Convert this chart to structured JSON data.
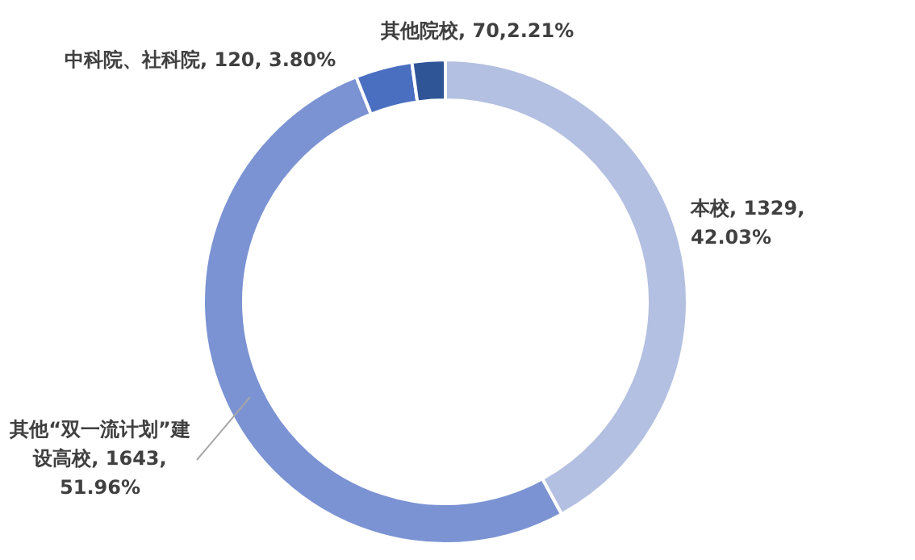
{
  "chart_data": {
    "type": "donut",
    "categories": [
      "本校",
      "其他“双一流计划”建设高校",
      "中科院、社科院",
      "其他院校"
    ],
    "values": [
      1329,
      1643,
      120,
      70
    ],
    "colors": [
      "#b4c0e1",
      "#7b93d3",
      "#4a6fc1",
      "#2f5597"
    ],
    "value_labels": [
      ", 1329, 42.03%",
      ", 1643, 51.96%",
      ", 120, 3.80%",
      ", 70,2.21%"
    ],
    "legend": false
  }
}
